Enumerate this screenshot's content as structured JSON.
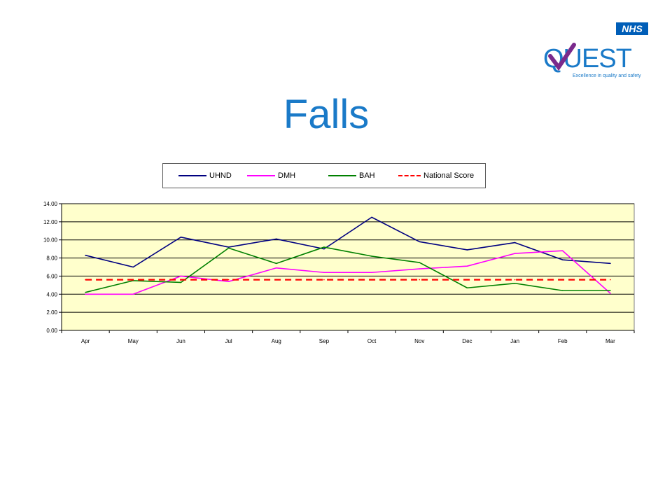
{
  "logo": {
    "nhs": "NHS",
    "quest": "QUEST",
    "tagline": "Excellence in quality and safety"
  },
  "title": "Falls",
  "colors": {
    "title": "#1a7ac8",
    "plot_bg": "#ffffcc",
    "UHND": "#000080",
    "DMH": "#ff00ff",
    "BAH": "#008000",
    "National Score": "#ff0000"
  },
  "chart_data": {
    "type": "line",
    "categories": [
      "Apr",
      "May",
      "Jun",
      "Jul",
      "Aug",
      "Sep",
      "Oct",
      "Nov",
      "Dec",
      "Jan",
      "Feb",
      "Mar"
    ],
    "series": [
      {
        "name": "UHND",
        "values": [
          8.3,
          7.0,
          10.3,
          9.2,
          10.1,
          9.0,
          12.5,
          9.8,
          8.9,
          9.7,
          7.8,
          7.4
        ]
      },
      {
        "name": "DMH",
        "values": [
          4.0,
          4.0,
          6.0,
          5.4,
          6.9,
          6.4,
          6.4,
          6.8,
          7.1,
          8.5,
          8.8,
          4.1
        ]
      },
      {
        "name": "BAH",
        "values": [
          4.2,
          5.5,
          5.3,
          9.1,
          7.4,
          9.2,
          8.2,
          7.5,
          4.7,
          5.2,
          4.4,
          4.4
        ]
      },
      {
        "name": "National Score",
        "values": [
          5.6,
          5.6,
          5.6,
          5.6,
          5.6,
          5.6,
          5.6,
          5.6,
          5.6,
          5.6,
          5.6,
          5.6
        ],
        "dashed": true
      }
    ],
    "yticks": [
      "0.00",
      "2.00",
      "4.00",
      "6.00",
      "8.00",
      "10.00",
      "12.00",
      "14.00"
    ],
    "ylim": [
      0,
      14
    ],
    "grid": true,
    "legend_position": "top"
  }
}
